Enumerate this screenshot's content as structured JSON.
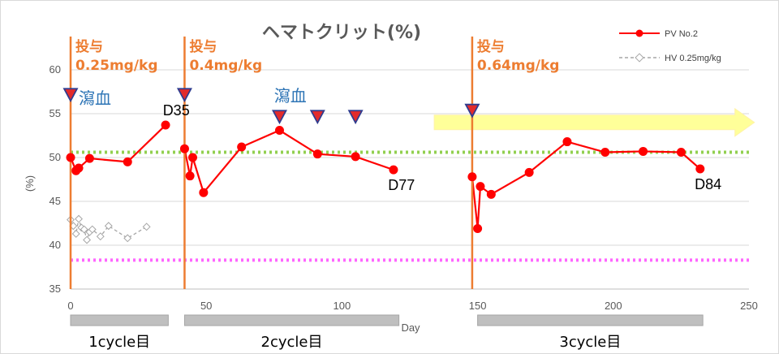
{
  "chart_data": {
    "type": "line",
    "title": "ヘマトクリット(%)",
    "ylabel": "(%)",
    "xlabel": "Day",
    "xlim": [
      0,
      250
    ],
    "ylim": [
      35,
      60
    ],
    "xticks": [
      0,
      50,
      100,
      150,
      200,
      250
    ],
    "yticks": [
      35,
      40,
      45,
      50,
      55,
      60
    ],
    "grid": true,
    "legend_position": "top-right",
    "series": [
      {
        "name": "PV No.2",
        "color": "#ff0000",
        "marker": "circle",
        "points": [
          [
            0,
            50.0
          ],
          [
            2,
            48.5
          ],
          [
            3,
            48.8
          ],
          [
            7,
            49.9
          ],
          [
            21,
            49.5
          ],
          [
            35,
            53.7
          ],
          [
            42,
            51.0
          ],
          [
            44,
            47.9
          ],
          [
            45,
            50.0
          ],
          [
            49,
            46.0
          ],
          [
            63,
            51.2
          ],
          [
            77,
            53.1
          ],
          [
            91,
            50.4
          ],
          [
            105,
            50.1
          ],
          [
            119,
            48.6
          ],
          [
            148,
            47.8
          ],
          [
            150,
            41.9
          ],
          [
            151,
            46.7
          ],
          [
            155,
            45.8
          ],
          [
            169,
            48.3
          ],
          [
            183,
            51.8
          ],
          [
            197,
            50.6
          ],
          [
            211,
            50.7
          ],
          [
            225,
            50.6
          ],
          [
            232,
            48.7
          ]
        ]
      },
      {
        "name": "HV 0.25mg/kg",
        "color": "#a6a6a6",
        "marker": "diamond",
        "dashed": true,
        "points": [
          [
            0,
            42.9
          ],
          [
            1,
            42.2
          ],
          [
            2,
            41.3
          ],
          [
            3,
            43.0
          ],
          [
            4,
            42.0
          ],
          [
            5,
            41.8
          ],
          [
            6,
            40.6
          ],
          [
            7,
            41.5
          ],
          [
            8,
            41.8
          ],
          [
            11,
            41.0
          ],
          [
            14,
            42.2
          ],
          [
            21,
            40.8
          ],
          [
            28,
            42.1
          ]
        ]
      }
    ],
    "reference_lines": [
      {
        "y": 50.6,
        "color": "#92d050"
      },
      {
        "y": 38.3,
        "color": "#ff66ff"
      }
    ],
    "dose_lines": [
      {
        "x": 0,
        "label_line1": "投与",
        "label_line2": "0.25mg/kg"
      },
      {
        "x": 42,
        "label_line1": "投与",
        "label_line2": "0.4mg/kg"
      },
      {
        "x": 148,
        "label_line1": "投与",
        "label_line2": "0.64mg/kg"
      }
    ],
    "phlebotomy_markers": [
      {
        "x": 0,
        "y": 57.2
      },
      {
        "x": 42,
        "y": 57.2
      },
      {
        "x": 77,
        "y": 54.7
      },
      {
        "x": 91,
        "y": 54.7
      },
      {
        "x": 105,
        "y": 54.7
      },
      {
        "x": 148,
        "y": 55.4
      }
    ],
    "phlebotomy_labels": [
      {
        "text": "瀉血",
        "x": 3,
        "y": 56.1
      },
      {
        "text": "瀉血",
        "x": 75,
        "y": 56.4
      }
    ],
    "day_labels": [
      {
        "text": "D35",
        "x": 34,
        "y": 54.8
      },
      {
        "text": "D77",
        "x": 117,
        "y": 46.3
      },
      {
        "text": "D84",
        "x": 230,
        "y": 46.4
      }
    ],
    "continuation_arrow": {
      "x_start": 134,
      "x_end": 252,
      "y": 54.0
    },
    "cycles": [
      {
        "label": "1cycle目",
        "x_start": 0,
        "x_end": 36
      },
      {
        "label": "2cycle目",
        "x_start": 42,
        "x_end": 121
      },
      {
        "label": "3cycle目",
        "x_start": 150,
        "x_end": 233
      }
    ]
  }
}
